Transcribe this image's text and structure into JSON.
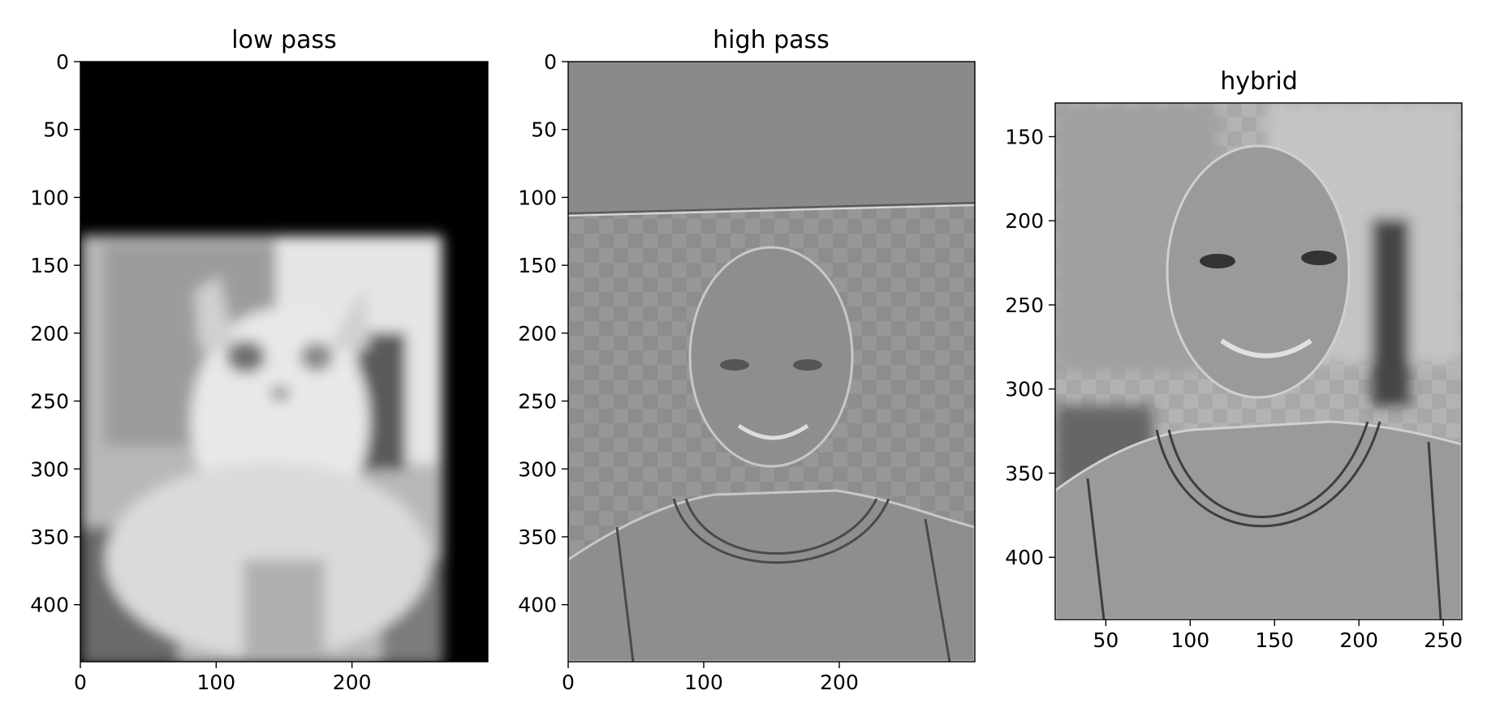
{
  "chart_data": [
    {
      "type": "image",
      "title": "low pass",
      "xlim": [
        0,
        300
      ],
      "ylim": [
        442,
        0
      ],
      "xticks": [
        0,
        100,
        200
      ],
      "yticks": [
        0,
        50,
        100,
        150,
        200,
        250,
        300,
        350,
        400
      ],
      "content": "blurred grayscale cat photo"
    },
    {
      "type": "image",
      "title": "high pass",
      "xlim": [
        0,
        300
      ],
      "ylim": [
        442,
        0
      ],
      "xticks": [
        0,
        100,
        200
      ],
      "yticks": [
        0,
        50,
        100,
        150,
        200,
        250,
        300,
        350,
        400
      ],
      "content": "edge-filtered grayscale portrait"
    },
    {
      "type": "image",
      "title": "hybrid",
      "xlim": [
        20,
        261
      ],
      "ylim": [
        437,
        130
      ],
      "xticks": [
        50,
        100,
        150,
        200,
        250
      ],
      "yticks": [
        150,
        200,
        250,
        300,
        350,
        400
      ],
      "content": "hybrid grayscale image (portrait over blurred cat)"
    }
  ],
  "colors": {
    "black": "#000000",
    "gray_mid": "#8a8a8a",
    "gray_light": "#bdbdbd",
    "white": "#f2f2f2"
  }
}
